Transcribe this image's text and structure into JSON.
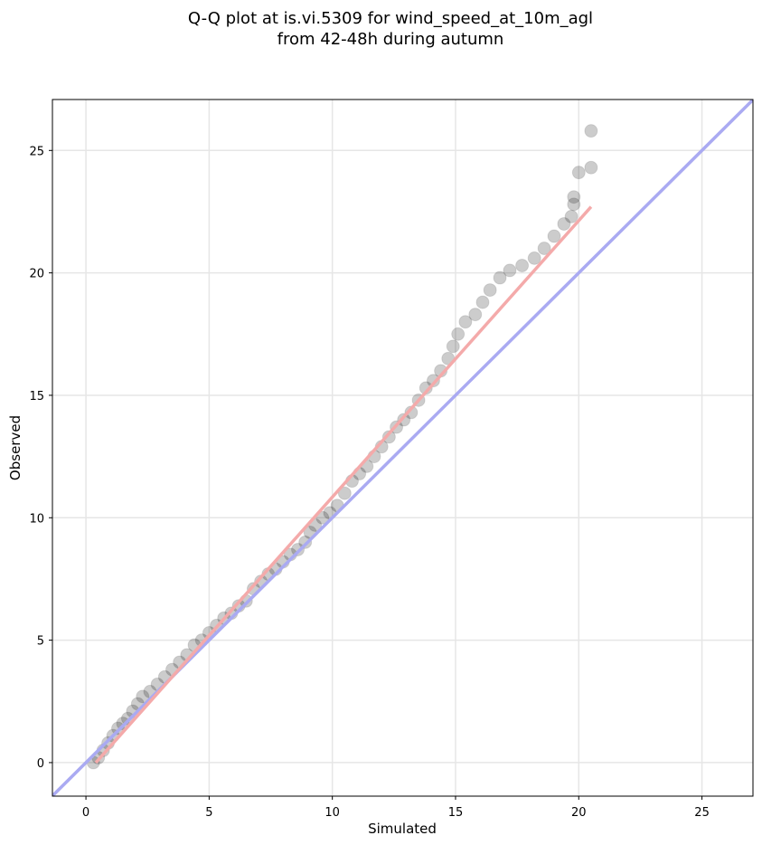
{
  "chart_data": {
    "type": "scatter",
    "title": [
      "Q-Q plot at is.vi.5309 for wind_speed_at_10m_agl",
      "from 42-48h during autumn"
    ],
    "x_label": "Simulated",
    "y_label": "Observed",
    "xlim": [
      -1.36,
      27.07
    ],
    "ylim": [
      -1.37,
      27.08
    ],
    "xticks": [
      0,
      5,
      10,
      15,
      20,
      25
    ],
    "yticks": [
      0,
      5,
      10,
      15,
      20,
      25
    ],
    "grid": true,
    "point_color": "#000000",
    "point_alpha": 0.2,
    "x": [
      0.3,
      0.5,
      0.7,
      0.9,
      1.1,
      1.3,
      1.5,
      1.7,
      1.9,
      2.1,
      2.3,
      2.6,
      2.9,
      3.2,
      3.5,
      3.8,
      4.1,
      4.4,
      4.7,
      5.0,
      5.3,
      5.6,
      5.9,
      6.2,
      6.5,
      6.8,
      7.1,
      7.4,
      7.7,
      8.0,
      8.3,
      8.6,
      8.9,
      9.1,
      9.3,
      9.6,
      9.9,
      10.2,
      10.5,
      10.8,
      11.1,
      11.4,
      11.7,
      12.0,
      12.3,
      12.6,
      12.9,
      13.2,
      13.5,
      13.8,
      14.1,
      14.4,
      14.7,
      14.9,
      15.1,
      15.4,
      15.8,
      16.1,
      16.4,
      16.8,
      17.2,
      17.7,
      18.2,
      18.6,
      19.0,
      19.4,
      19.7,
      19.8,
      19.8,
      20.0,
      20.5,
      20.5
    ],
    "values": [
      0,
      0.2,
      0.5,
      0.8,
      1.1,
      1.4,
      1.6,
      1.8,
      2.1,
      2.4,
      2.7,
      2.9,
      3.2,
      3.5,
      3.8,
      4.1,
      4.4,
      4.8,
      5.0,
      5.3,
      5.6,
      5.9,
      6.1,
      6.4,
      6.6,
      7.1,
      7.4,
      7.7,
      7.9,
      8.2,
      8.5,
      8.7,
      9.0,
      9.4,
      9.7,
      10.0,
      10.2,
      10.5,
      11.0,
      11.5,
      11.8,
      12.1,
      12.5,
      12.9,
      13.3,
      13.7,
      14.0,
      14.3,
      14.8,
      15.3,
      15.6,
      16.0,
      16.5,
      17.0,
      17.5,
      18.0,
      18.3,
      18.8,
      19.3,
      19.8,
      20.1,
      20.3,
      20.6,
      21.0,
      21.5,
      22.0,
      22.3,
      22.8,
      23.1,
      24.1,
      24.3,
      25.8
    ],
    "lines": [
      {
        "color": "#aaaaf2",
        "x": [
          -1.36,
          27.07
        ],
        "values": [
          -1.36,
          27.07
        ]
      },
      {
        "color": "#f4aaaa",
        "x": [
          0.4,
          20.5
        ],
        "values": [
          0.0,
          22.7
        ]
      }
    ]
  }
}
